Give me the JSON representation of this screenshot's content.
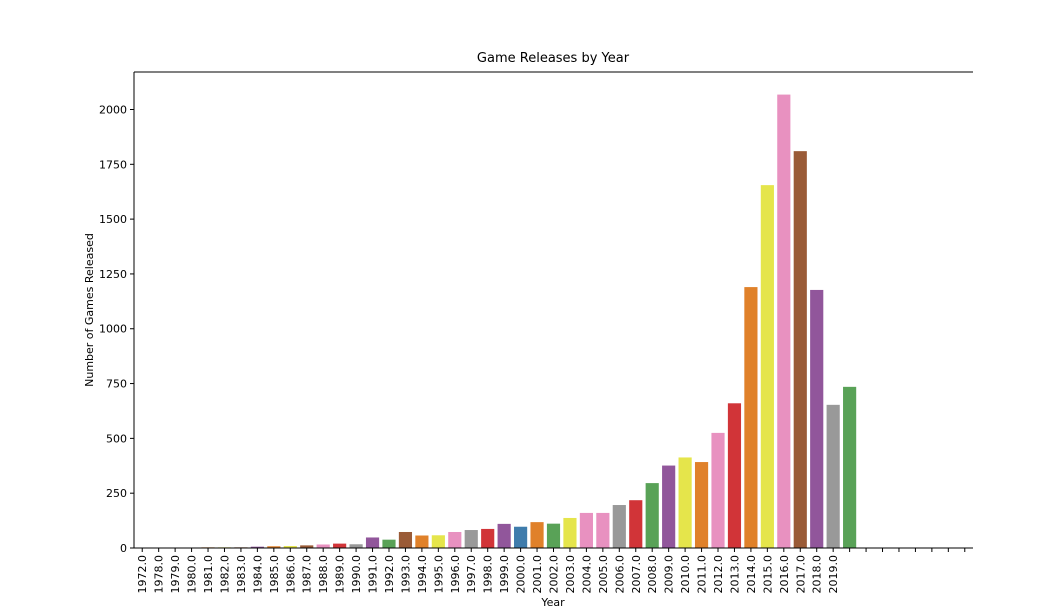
{
  "chart_data": {
    "type": "bar",
    "title": "Game Releases by Year",
    "x_label": "Year",
    "y_label": "Number of Games Released",
    "categories": [
      "1972.0",
      "1978.0",
      "1979.0",
      "1980.0",
      "1981.0",
      "1982.0",
      "1983.0",
      "1984.0",
      "1985.0",
      "1986.0",
      "1987.0",
      "1988.0",
      "1989.0",
      "1990.0",
      "1991.0",
      "1992.0",
      "1993.0",
      "1994.0",
      "1995.0",
      "1996.0",
      "1997.0",
      "1998.0",
      "1999.0",
      "2000.0",
      "2001.0",
      "2002.0",
      "2003.0",
      "2004.0",
      "2005.0",
      "2006.0",
      "2007.0",
      "2008.0",
      "2009.0",
      "2010.0",
      "2011.0",
      "2012.0",
      "2013.0",
      "2014.0",
      "2015.0",
      "2016.0",
      "2017.0",
      "2018.0",
      "2019.0",
      null,
      null,
      null,
      null,
      null,
      null,
      null,
      null
    ],
    "values": [
      1,
      1,
      1,
      1,
      3,
      3,
      3,
      6,
      8,
      9,
      12,
      16,
      20,
      17,
      48,
      38,
      73,
      57,
      58,
      73,
      82,
      87,
      110,
      97,
      118,
      111,
      137,
      160,
      160,
      196,
      218,
      296,
      376,
      413,
      392,
      525,
      660,
      1190,
      1655,
      2068,
      1810,
      1177,
      653,
      735,
      0,
      0,
      0,
      0,
      0,
      0,
      0
    ],
    "colors": [
      "#d13438",
      "#3f7cac",
      "#59a257",
      "#91569b",
      "#e0812a",
      "#e5e54b",
      "#9a5b37",
      "#91569b",
      "#e0812a",
      "#e5e54b",
      "#9a5b37",
      "#e891c0",
      "#d13438",
      "#999999",
      "#91569b",
      "#59a257",
      "#9a5b37",
      "#e0812a",
      "#e5e54b",
      "#e891c0",
      "#999999",
      "#d13438",
      "#91569b",
      "#3f7cac",
      "#e0812a",
      "#59a257",
      "#e5e54b",
      "#e891c0",
      "#e891c0",
      "#999999",
      "#d13438",
      "#59a257",
      "#91569b",
      "#e5e54b",
      "#e0812a",
      "#e891c0",
      "#d13438",
      "#e0812a",
      "#e5e54b",
      "#e891c0",
      "#9a5b37",
      "#91569b",
      "#999999",
      "#59a257",
      "#999999",
      "#999999",
      "#999999",
      "#999999",
      "#999999",
      "#999999",
      "#999999"
    ],
    "ylim": [
      0,
      2171
    ],
    "yticks": [
      0,
      250,
      500,
      750,
      1000,
      1250,
      1500,
      1750,
      2000
    ]
  }
}
